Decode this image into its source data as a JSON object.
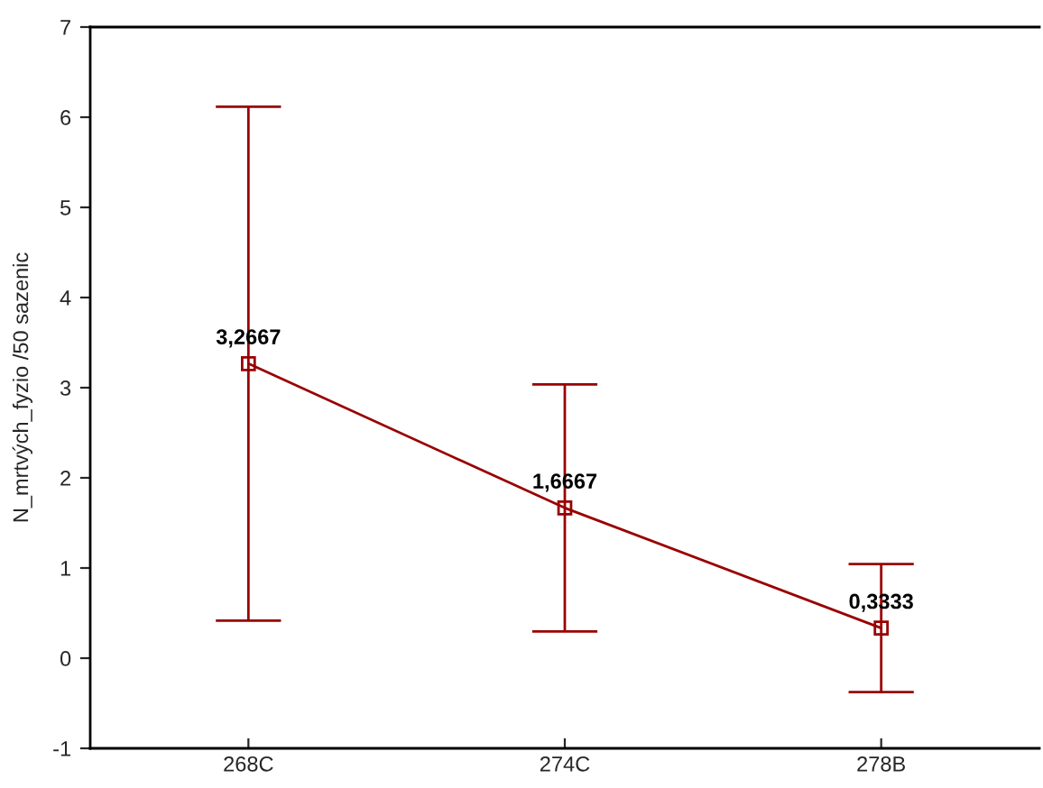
{
  "chart_data": {
    "type": "line",
    "ylabel": "N_mrtvých_fyzio /50 sazenic",
    "categories": [
      "268C",
      "274C",
      "278B"
    ],
    "series": [
      {
        "color": "#990000",
        "values": [
          3.2667,
          1.6667,
          0.3333
        ],
        "errors": [
          2.85,
          1.37,
          0.71
        ],
        "value_labels": [
          "3,2667",
          "1,6667",
          "0,3333"
        ]
      }
    ],
    "ylim": [
      -1,
      7
    ],
    "yticks": [
      -1,
      0,
      1,
      2,
      3,
      4,
      5,
      6,
      7
    ],
    "marker": "square",
    "line_style": "solid"
  }
}
